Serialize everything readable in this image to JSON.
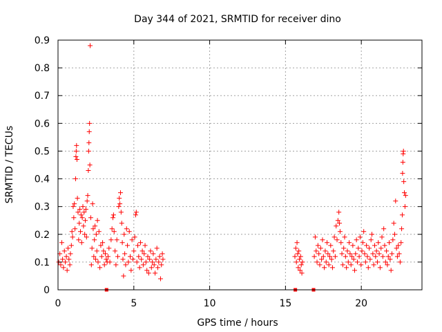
{
  "chart_data": {
    "type": "scatter",
    "title": "Day 344 of 2021, SRMTID for receiver dino",
    "xlabel": "GPS time / hours",
    "ylabel": "SRMTID / TECUs",
    "xlim": [
      0,
      24
    ],
    "ylim": [
      0,
      0.9
    ],
    "xticks": [
      0,
      5,
      10,
      15,
      20
    ],
    "xtick_labels": [
      "0",
      "5",
      "10",
      "15",
      "20"
    ],
    "yticks": [
      0,
      0.1,
      0.2,
      0.3,
      0.4,
      0.5,
      0.6,
      0.7,
      0.8,
      0.9
    ],
    "ytick_labels": [
      "0",
      "0.1",
      "0.2",
      "0.3",
      "0.4",
      "0.5",
      "0.6",
      "0.7",
      "0.8",
      "0.9"
    ],
    "grid": true,
    "marker": "+",
    "series_color": "#ff0000",
    "series": [
      {
        "name": "SRMTID",
        "points": [
          [
            0.05,
            0.1
          ],
          [
            0.12,
            0.13
          ],
          [
            0.18,
            0.09
          ],
          [
            0.25,
            0.17
          ],
          [
            0.3,
            0.11
          ],
          [
            0.36,
            0.08
          ],
          [
            0.42,
            0.14
          ],
          [
            0.48,
            0.1
          ],
          [
            0.55,
            0.12
          ],
          [
            0.6,
            0.07
          ],
          [
            0.66,
            0.15
          ],
          [
            0.72,
            0.11
          ],
          [
            0.78,
            0.09
          ],
          [
            0.82,
            0.13
          ],
          [
            0.88,
            0.16
          ],
          [
            0.92,
            0.21
          ],
          [
            0.96,
            0.19
          ],
          [
            1.0,
            0.3
          ],
          [
            1.04,
            0.26
          ],
          [
            1.08,
            0.31
          ],
          [
            1.12,
            0.22
          ],
          [
            1.16,
            0.4
          ],
          [
            1.18,
            0.48
          ],
          [
            1.2,
            0.5
          ],
          [
            1.22,
            0.52
          ],
          [
            1.25,
            0.47
          ],
          [
            1.28,
            0.33
          ],
          [
            1.32,
            0.28
          ],
          [
            1.36,
            0.18
          ],
          [
            1.4,
            0.24
          ],
          [
            1.44,
            0.29
          ],
          [
            1.48,
            0.21
          ],
          [
            1.52,
            0.27
          ],
          [
            1.56,
            0.17
          ],
          [
            1.6,
            0.26
          ],
          [
            1.64,
            0.3
          ],
          [
            1.68,
            0.23
          ],
          [
            1.72,
            0.28
          ],
          [
            1.76,
            0.2
          ],
          [
            1.8,
            0.25
          ],
          [
            1.84,
            0.29
          ],
          [
            1.88,
            0.19
          ],
          [
            1.92,
            0.32
          ],
          [
            1.96,
            0.34
          ],
          [
            2.0,
            0.43
          ],
          [
            2.02,
            0.5
          ],
          [
            2.04,
            0.53
          ],
          [
            2.06,
            0.57
          ],
          [
            2.08,
            0.6
          ],
          [
            2.1,
            0.45
          ],
          [
            2.12,
            0.88
          ],
          [
            2.16,
            0.26
          ],
          [
            2.2,
            0.09
          ],
          [
            2.24,
            0.15
          ],
          [
            2.28,
            0.31
          ],
          [
            2.32,
            0.22
          ],
          [
            2.36,
            0.12
          ],
          [
            2.4,
            0.18
          ],
          [
            2.44,
            0.23
          ],
          [
            2.48,
            0.11
          ],
          [
            2.52,
            0.2
          ],
          [
            2.56,
            0.14
          ],
          [
            2.6,
            0.25
          ],
          [
            2.64,
            0.1
          ],
          [
            2.7,
            0.21
          ],
          [
            2.76,
            0.08
          ],
          [
            2.82,
            0.16
          ],
          [
            2.88,
            0.12
          ],
          [
            2.94,
            0.17
          ],
          [
            3.0,
            0.14
          ],
          [
            3.06,
            0.09
          ],
          [
            3.12,
            0.13
          ],
          [
            3.18,
            0.11
          ],
          [
            3.24,
            0.1
          ],
          [
            3.3,
            0.12
          ],
          [
            3.36,
            0.15
          ],
          [
            3.42,
            0.1
          ],
          [
            3.5,
            0.18
          ],
          [
            3.56,
            0.22
          ],
          [
            3.62,
            0.26
          ],
          [
            3.66,
            0.27
          ],
          [
            3.7,
            0.21
          ],
          [
            3.76,
            0.14
          ],
          [
            3.82,
            0.09
          ],
          [
            3.88,
            0.18
          ],
          [
            3.94,
            0.12
          ],
          [
            4.0,
            0.3
          ],
          [
            4.04,
            0.33
          ],
          [
            4.08,
            0.31
          ],
          [
            4.12,
            0.35
          ],
          [
            4.16,
            0.28
          ],
          [
            4.2,
            0.24
          ],
          [
            4.24,
            0.17
          ],
          [
            4.28,
            0.11
          ],
          [
            4.32,
            0.05
          ],
          [
            4.36,
            0.2
          ],
          [
            4.4,
            0.13
          ],
          [
            4.46,
            0.09
          ],
          [
            4.52,
            0.22
          ],
          [
            4.58,
            0.16
          ],
          [
            4.64,
            0.1
          ],
          [
            4.7,
            0.21
          ],
          [
            4.76,
            0.12
          ],
          [
            4.82,
            0.07
          ],
          [
            4.88,
            0.18
          ],
          [
            4.94,
            0.11
          ],
          [
            5.0,
            0.14
          ],
          [
            5.06,
            0.19
          ],
          [
            5.12,
            0.27
          ],
          [
            5.16,
            0.28
          ],
          [
            5.2,
            0.1
          ],
          [
            5.26,
            0.16
          ],
          [
            5.32,
            0.12
          ],
          [
            5.38,
            0.08
          ],
          [
            5.44,
            0.17
          ],
          [
            5.5,
            0.11
          ],
          [
            5.56,
            0.14
          ],
          [
            5.62,
            0.09
          ],
          [
            5.68,
            0.13
          ],
          [
            5.74,
            0.16
          ],
          [
            5.8,
            0.1
          ],
          [
            5.86,
            0.07
          ],
          [
            5.92,
            0.12
          ],
          [
            5.98,
            0.06
          ],
          [
            6.04,
            0.11
          ],
          [
            6.1,
            0.14
          ],
          [
            6.16,
            0.08
          ],
          [
            6.22,
            0.1
          ],
          [
            6.28,
            0.13
          ],
          [
            6.34,
            0.09
          ],
          [
            6.4,
            0.06
          ],
          [
            6.46,
            0.11
          ],
          [
            6.52,
            0.15
          ],
          [
            6.58,
            0.08
          ],
          [
            6.64,
            0.1
          ],
          [
            6.7,
            0.12
          ],
          [
            6.76,
            0.04
          ],
          [
            6.82,
            0.09
          ],
          [
            6.88,
            0.13
          ],
          [
            6.92,
            0.11
          ],
          [
            15.62,
            0.12
          ],
          [
            15.68,
            0.15
          ],
          [
            15.72,
            0.1
          ],
          [
            15.76,
            0.17
          ],
          [
            15.8,
            0.13
          ],
          [
            15.84,
            0.08
          ],
          [
            15.88,
            0.14
          ],
          [
            15.92,
            0.11
          ],
          [
            15.96,
            0.07
          ],
          [
            16.0,
            0.12
          ],
          [
            16.04,
            0.09
          ],
          [
            16.08,
            0.06
          ],
          [
            16.12,
            0.1
          ],
          [
            16.9,
            0.12
          ],
          [
            16.96,
            0.19
          ],
          [
            17.02,
            0.14
          ],
          [
            17.08,
            0.1
          ],
          [
            17.14,
            0.16
          ],
          [
            17.2,
            0.13
          ],
          [
            17.26,
            0.09
          ],
          [
            17.32,
            0.15
          ],
          [
            17.38,
            0.11
          ],
          [
            17.44,
            0.18
          ],
          [
            17.5,
            0.12
          ],
          [
            17.56,
            0.08
          ],
          [
            17.62,
            0.14
          ],
          [
            17.68,
            0.1
          ],
          [
            17.74,
            0.17
          ],
          [
            17.8,
            0.13
          ],
          [
            17.86,
            0.09
          ],
          [
            17.92,
            0.12
          ],
          [
            17.98,
            0.16
          ],
          [
            18.04,
            0.11
          ],
          [
            18.1,
            0.08
          ],
          [
            18.16,
            0.14
          ],
          [
            18.22,
            0.19
          ],
          [
            18.28,
            0.12
          ],
          [
            18.34,
            0.23
          ],
          [
            18.4,
            0.18
          ],
          [
            18.46,
            0.25
          ],
          [
            18.52,
            0.28
          ],
          [
            18.56,
            0.24
          ],
          [
            18.6,
            0.21
          ],
          [
            18.66,
            0.17
          ],
          [
            18.72,
            0.13
          ],
          [
            18.78,
            0.09
          ],
          [
            18.84,
            0.15
          ],
          [
            18.9,
            0.19
          ],
          [
            18.96,
            0.12
          ],
          [
            19.02,
            0.08
          ],
          [
            19.08,
            0.14
          ],
          [
            19.14,
            0.1
          ],
          [
            19.2,
            0.17
          ],
          [
            19.26,
            0.13
          ],
          [
            19.32,
            0.09
          ],
          [
            19.38,
            0.12
          ],
          [
            19.44,
            0.16
          ],
          [
            19.5,
            0.11
          ],
          [
            19.56,
            0.07
          ],
          [
            19.62,
            0.13
          ],
          [
            19.68,
            0.18
          ],
          [
            19.74,
            0.1
          ],
          [
            19.8,
            0.15
          ],
          [
            19.86,
            0.12
          ],
          [
            19.92,
            0.19
          ],
          [
            19.98,
            0.09
          ],
          [
            20.04,
            0.14
          ],
          [
            20.1,
            0.17
          ],
          [
            20.16,
            0.21
          ],
          [
            20.22,
            0.13
          ],
          [
            20.28,
            0.1
          ],
          [
            20.34,
            0.16
          ],
          [
            20.4,
            0.12
          ],
          [
            20.46,
            0.08
          ],
          [
            20.52,
            0.15
          ],
          [
            20.58,
            0.11
          ],
          [
            20.64,
            0.18
          ],
          [
            20.7,
            0.2
          ],
          [
            20.76,
            0.13
          ],
          [
            20.82,
            0.09
          ],
          [
            20.88,
            0.16
          ],
          [
            20.94,
            0.12
          ],
          [
            21.0,
            0.14
          ],
          [
            21.06,
            0.1
          ],
          [
            21.12,
            0.17
          ],
          [
            21.18,
            0.13
          ],
          [
            21.24,
            0.08
          ],
          [
            21.3,
            0.15
          ],
          [
            21.36,
            0.19
          ],
          [
            21.42,
            0.12
          ],
          [
            21.48,
            0.22
          ],
          [
            21.54,
            0.16
          ],
          [
            21.6,
            0.1
          ],
          [
            21.66,
            0.14
          ],
          [
            21.72,
            0.09
          ],
          [
            21.78,
            0.12
          ],
          [
            21.84,
            0.17
          ],
          [
            21.9,
            0.11
          ],
          [
            21.96,
            0.07
          ],
          [
            22.02,
            0.13
          ],
          [
            22.08,
            0.18
          ],
          [
            22.14,
            0.24
          ],
          [
            22.2,
            0.2
          ],
          [
            22.26,
            0.32
          ],
          [
            22.32,
            0.15
          ],
          [
            22.38,
            0.12
          ],
          [
            22.44,
            0.16
          ],
          [
            22.5,
            0.13
          ],
          [
            22.56,
            0.1
          ],
          [
            22.62,
            0.17
          ],
          [
            22.66,
            0.22
          ],
          [
            22.7,
            0.27
          ],
          [
            22.72,
            0.42
          ],
          [
            22.74,
            0.46
          ],
          [
            22.76,
            0.49
          ],
          [
            22.78,
            0.5
          ],
          [
            22.8,
            0.39
          ],
          [
            22.84,
            0.35
          ],
          [
            22.88,
            0.3
          ],
          [
            22.92,
            0.34
          ]
        ]
      }
    ],
    "ticks_on_axis": [
      3.2,
      15.65,
      16.85
    ]
  }
}
